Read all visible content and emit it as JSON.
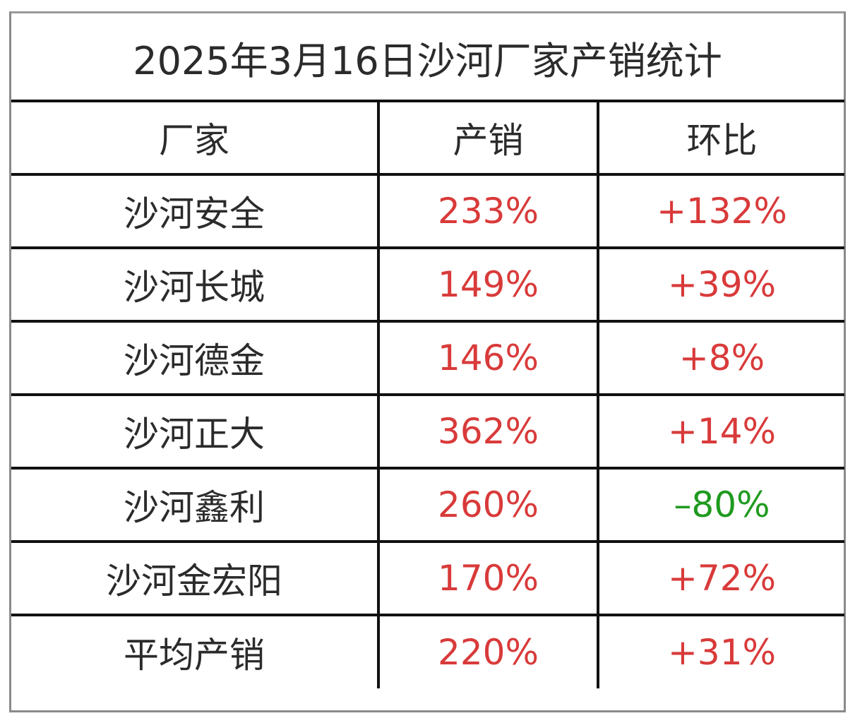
{
  "title": "2025年3月16日沙河厂家产销统计",
  "headers": {
    "factory": "厂家",
    "production_sales": "产销",
    "change": "环比"
  },
  "rows": [
    {
      "factory": "沙河安全",
      "production_sales": "233%",
      "change": "+132%",
      "trend": "up"
    },
    {
      "factory": "沙河长城",
      "production_sales": "149%",
      "change": "+39%",
      "trend": "up"
    },
    {
      "factory": "沙河德金",
      "production_sales": "146%",
      "change": "+8%",
      "trend": "up"
    },
    {
      "factory": "沙河正大",
      "production_sales": "362%",
      "change": "+14%",
      "trend": "up"
    },
    {
      "factory": "沙河鑫利",
      "production_sales": "260%",
      "change": "–80%",
      "trend": "down"
    },
    {
      "factory": "沙河金宏阳",
      "production_sales": "170%",
      "change": "+72%",
      "trend": "up"
    },
    {
      "factory": "平均产销",
      "production_sales": "220%",
      "change": "+31%",
      "trend": "up"
    }
  ],
  "colors": {
    "text": "#2b2b2b",
    "positive": "#d93a3a",
    "negative": "#1f9a1f",
    "grid": "#111111"
  }
}
